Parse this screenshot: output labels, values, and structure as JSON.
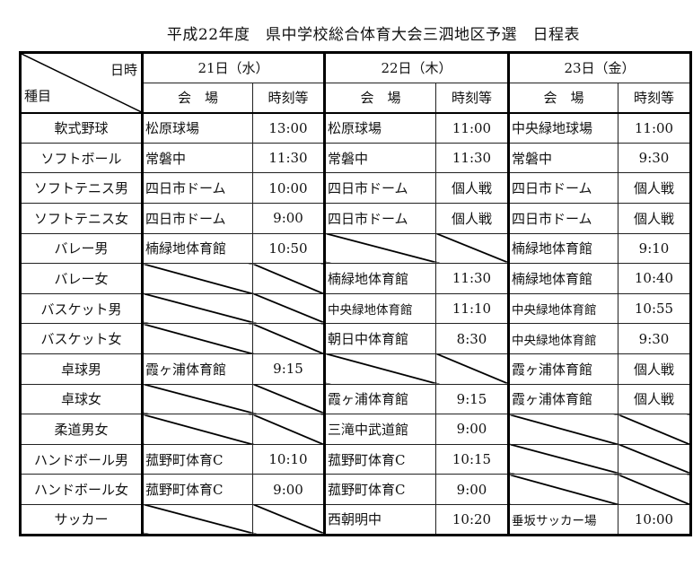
{
  "title": "平成22年度　県中学校総合体育大会三泗地区予選　日程表",
  "header": {
    "corner_top": "日時",
    "corner_bottom": "種目",
    "days": [
      "21日（水）",
      "22日（木）",
      "23日（金）"
    ],
    "venue_label": "会　場",
    "time_label": "時刻等"
  },
  "rows": [
    {
      "event": "軟式野球",
      "days": [
        [
          "松原球場",
          "13:00"
        ],
        [
          "松原球場",
          "11:00"
        ],
        [
          "中央緑地球場",
          "11:00"
        ]
      ]
    },
    {
      "event": "ソフトボール",
      "days": [
        [
          "常磐中",
          "11:30"
        ],
        [
          "常磐中",
          "11:30"
        ],
        [
          "常磐中",
          "9:30"
        ]
      ]
    },
    {
      "event": "ソフトテニス男",
      "days": [
        [
          "四日市ドーム",
          "10:00"
        ],
        [
          "四日市ドーム",
          "個人戦"
        ],
        [
          "四日市ドーム",
          "個人戦"
        ]
      ]
    },
    {
      "event": "ソフトテニス女",
      "days": [
        [
          "四日市ドーム",
          "9:00"
        ],
        [
          "四日市ドーム",
          "個人戦"
        ],
        [
          "四日市ドーム",
          "個人戦"
        ]
      ]
    },
    {
      "event": "バレー男",
      "days": [
        [
          "楠緑地体育館",
          "10:50"
        ],
        null,
        [
          "楠緑地体育館",
          "9:10"
        ]
      ]
    },
    {
      "event": "バレー女",
      "days": [
        null,
        [
          "楠緑地体育館",
          "11:30"
        ],
        [
          "楠緑地体育館",
          "10:40"
        ]
      ]
    },
    {
      "event": "バスケット男",
      "days": [
        null,
        [
          "中央緑地体育館",
          "11:10"
        ],
        [
          "中央緑地体育館",
          "10:55"
        ]
      ]
    },
    {
      "event": "バスケット女",
      "days": [
        null,
        [
          "朝日中体育館",
          "8:30"
        ],
        [
          "中央緑地体育館",
          "9:30"
        ]
      ]
    },
    {
      "event": "卓球男",
      "days": [
        [
          "霞ヶ浦体育館",
          "9:15"
        ],
        null,
        [
          "霞ヶ浦体育館",
          "個人戦"
        ]
      ]
    },
    {
      "event": "卓球女",
      "days": [
        null,
        [
          "霞ヶ浦体育館",
          "9:15"
        ],
        [
          "霞ヶ浦体育館",
          "個人戦"
        ]
      ]
    },
    {
      "event": "柔道男女",
      "days": [
        null,
        [
          "三滝中武道館",
          "9:00"
        ],
        null
      ]
    },
    {
      "event": "ハンドボール男",
      "days": [
        [
          "菰野町体育C",
          "10:10"
        ],
        [
          "菰野町体育C",
          "10:15"
        ],
        null
      ]
    },
    {
      "event": "ハンドボール女",
      "days": [
        [
          "菰野町体育C",
          "9:00"
        ],
        [
          "菰野町体育C",
          "9:00"
        ],
        null
      ]
    },
    {
      "event": "サッカー",
      "days": [
        null,
        [
          "西朝明中",
          "10:20"
        ],
        [
          "垂坂サッカー場",
          "10:00"
        ]
      ]
    }
  ]
}
